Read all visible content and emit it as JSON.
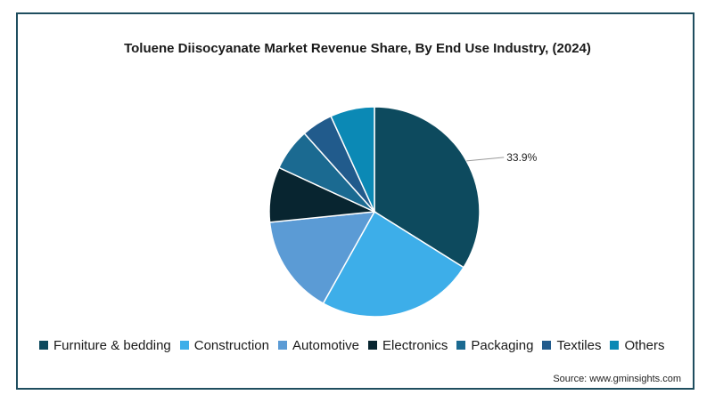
{
  "chart_data": {
    "type": "pie",
    "title": "Toluene Diisocyanate Market Revenue Share, By End Use Industry,  (2024)",
    "categories": [
      "Furniture & bedding",
      "Construction",
      "Automotive",
      "Electronics",
      "Packaging",
      "Textiles",
      "Others"
    ],
    "values": [
      33.9,
      24.2,
      15.3,
      8.5,
      6.5,
      4.8,
      6.8
    ],
    "colors": [
      "#0d4a5e",
      "#3daee9",
      "#5b9bd5",
      "#082530",
      "#1b6a91",
      "#215b8c",
      "#0b89b5"
    ],
    "data_labels": [
      "33.9%",
      "",
      "",
      "",
      "",
      "",
      ""
    ],
    "legend_position": "bottom"
  },
  "source": "Source: www.gminsights.com"
}
